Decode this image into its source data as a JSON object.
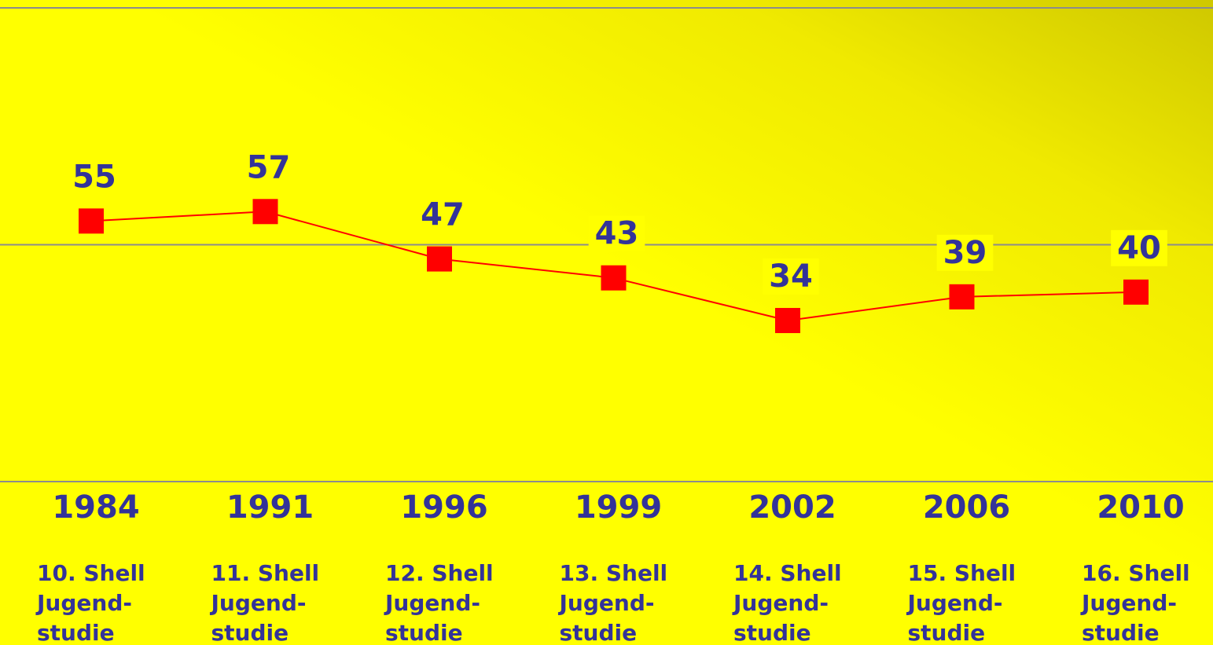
{
  "chart_data": {
    "type": "line",
    "categories": [
      "1984",
      "1991",
      "1996",
      "1999",
      "2002",
      "2006",
      "2010"
    ],
    "study_labels": [
      [
        "10. Shell",
        "Jugend-",
        "studie"
      ],
      [
        "11. Shell",
        "Jugend-",
        "studie"
      ],
      [
        "12. Shell",
        "Jugend-",
        "studie"
      ],
      [
        "13. Shell",
        "Jugend-",
        "studie"
      ],
      [
        "14. Shell",
        "Jugend-",
        "studie"
      ],
      [
        "15. Shell",
        "Jugend-",
        "studie"
      ],
      [
        "16. Shell",
        "Jugend-",
        "studie"
      ]
    ],
    "series": [
      {
        "color": "#ff0000",
        "values": [
          55,
          57,
          47,
          43,
          34,
          39,
          40
        ]
      }
    ],
    "ylim": [
      0,
      100
    ],
    "yticks": [
      0,
      50,
      100
    ],
    "grid": true
  }
}
